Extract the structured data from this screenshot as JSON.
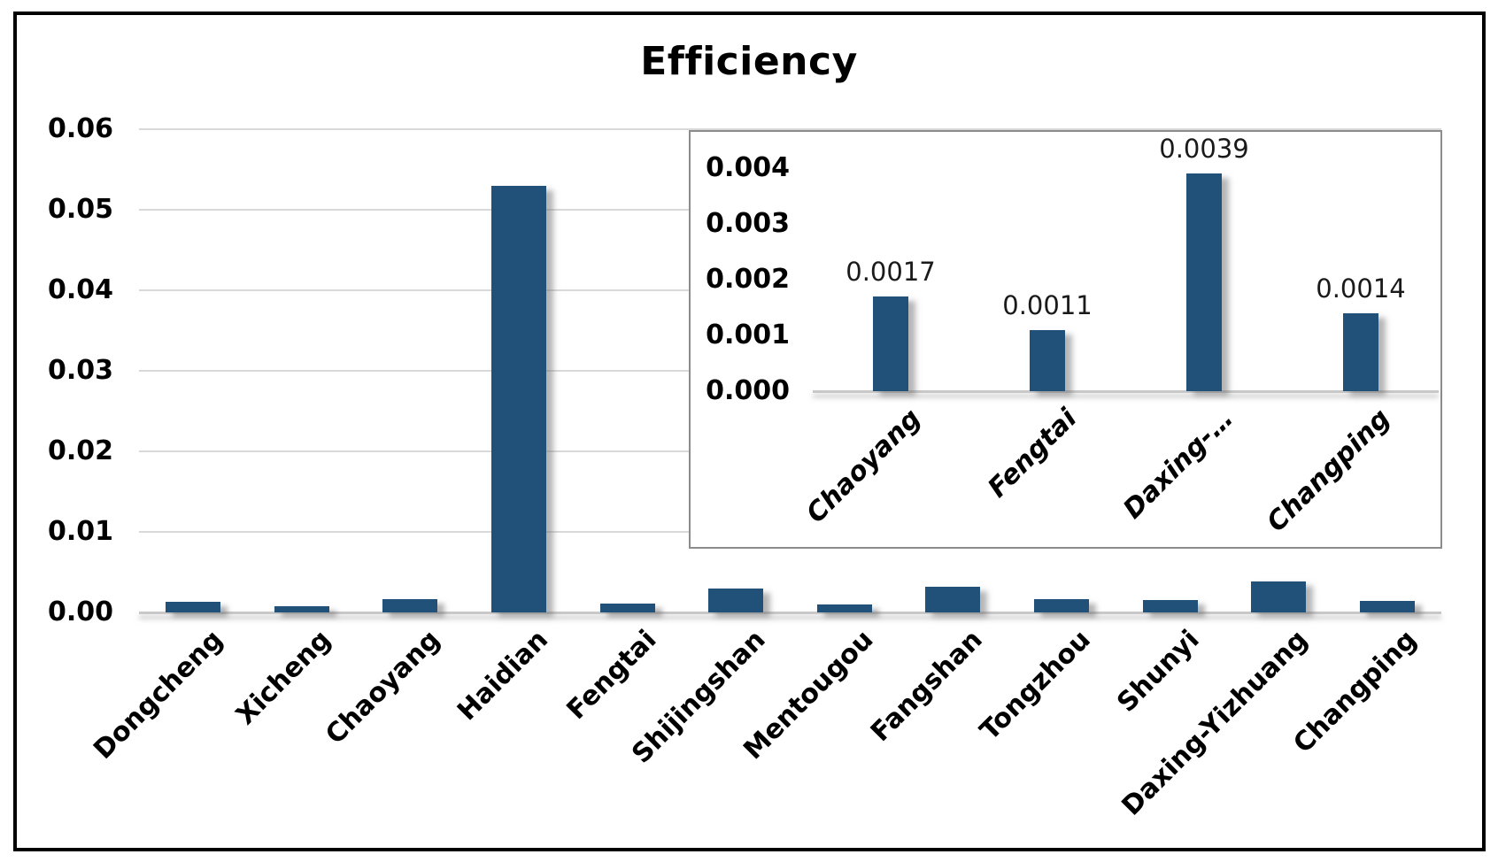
{
  "title": "Efficiency",
  "colors": {
    "bar_fill": "#215079",
    "gridline": "#D9D9D9",
    "axis_line": "#C8C8C8",
    "inset_border": "#8C8C8C",
    "outer_border": "#000000",
    "tick_text": "#000000",
    "value_label_text": "#1A1A1A"
  },
  "chart_data": [
    {
      "id": "main",
      "type": "bar",
      "title": "Efficiency",
      "xlabel": "",
      "ylabel": "",
      "categories": [
        "Dongcheng",
        "Xicheng",
        "Chaoyang",
        "Haidian",
        "Fengtai",
        "Shijingshan",
        "Mentougou",
        "Fangshan",
        "Tongzhou",
        "Shunyi",
        "Daxing-Yizhuang",
        "Changping"
      ],
      "values": [
        0.0013,
        0.0008,
        0.0017,
        0.053,
        0.0011,
        0.003,
        0.001,
        0.0032,
        0.0017,
        0.0015,
        0.0039,
        0.0014
      ],
      "ylim": [
        0,
        0.06
      ],
      "ytick_step": 0.01,
      "ytick_labels": [
        "0.00",
        "0.01",
        "0.02",
        "0.03",
        "0.04",
        "0.05",
        "0.06"
      ],
      "grid": true,
      "legend": false
    },
    {
      "id": "inset",
      "type": "bar",
      "title": "",
      "xlabel": "",
      "ylabel": "",
      "categories": [
        "Chaoyang",
        "Fengtai",
        "Daxing-…",
        "Changping"
      ],
      "values": [
        0.0017,
        0.0011,
        0.0039,
        0.0014
      ],
      "data_labels": [
        "0.0017",
        "0.0011",
        "0.0039",
        "0.0014"
      ],
      "ylim": [
        0,
        0.004
      ],
      "ytick_step": 0.001,
      "ytick_labels": [
        "0.000",
        "0.001",
        "0.002",
        "0.003",
        "0.004"
      ],
      "grid": false,
      "legend": false
    }
  ]
}
